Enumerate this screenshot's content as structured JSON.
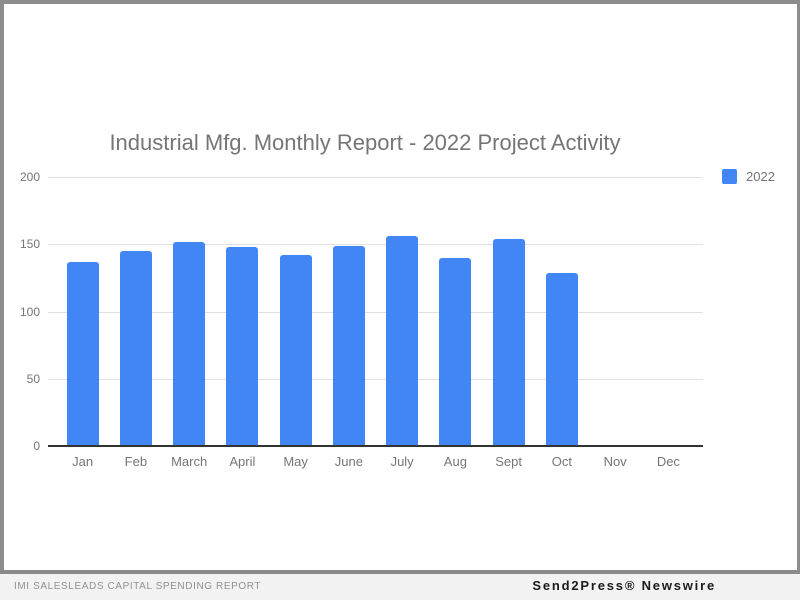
{
  "chart_data": {
    "type": "bar",
    "title": "Industrial Mfg. Monthly Report - 2022 Project Activity",
    "categories": [
      "Jan",
      "Feb",
      "March",
      "April",
      "May",
      "June",
      "July",
      "Aug",
      "Sept",
      "Oct",
      "Nov",
      "Dec"
    ],
    "series": [
      {
        "name": "2022",
        "color": "#4285f4",
        "values": [
          137,
          145,
          152,
          148,
          142,
          149,
          156,
          140,
          154,
          129,
          null,
          null
        ]
      }
    ],
    "xlabel": "",
    "ylabel": "",
    "ylim": [
      0,
      200
    ],
    "yticks": [
      0,
      50,
      100,
      150,
      200
    ],
    "grid": true,
    "legend_position": "top-right"
  },
  "footer": {
    "left": "IMI SALESLEADS CAPITAL SPENDING REPORT",
    "right": "Send2Press® Newswire"
  },
  "colors": {
    "bar": "#4285f4",
    "title_text": "#757575",
    "axis_text": "#757575",
    "gridline": "#e0e0e0",
    "baseline": "#333333",
    "frame_border": "#8d8d8d",
    "footer_bg": "#f2f2f2",
    "footer_left_text": "#919191",
    "footer_right_text": "#1b1b1b"
  }
}
